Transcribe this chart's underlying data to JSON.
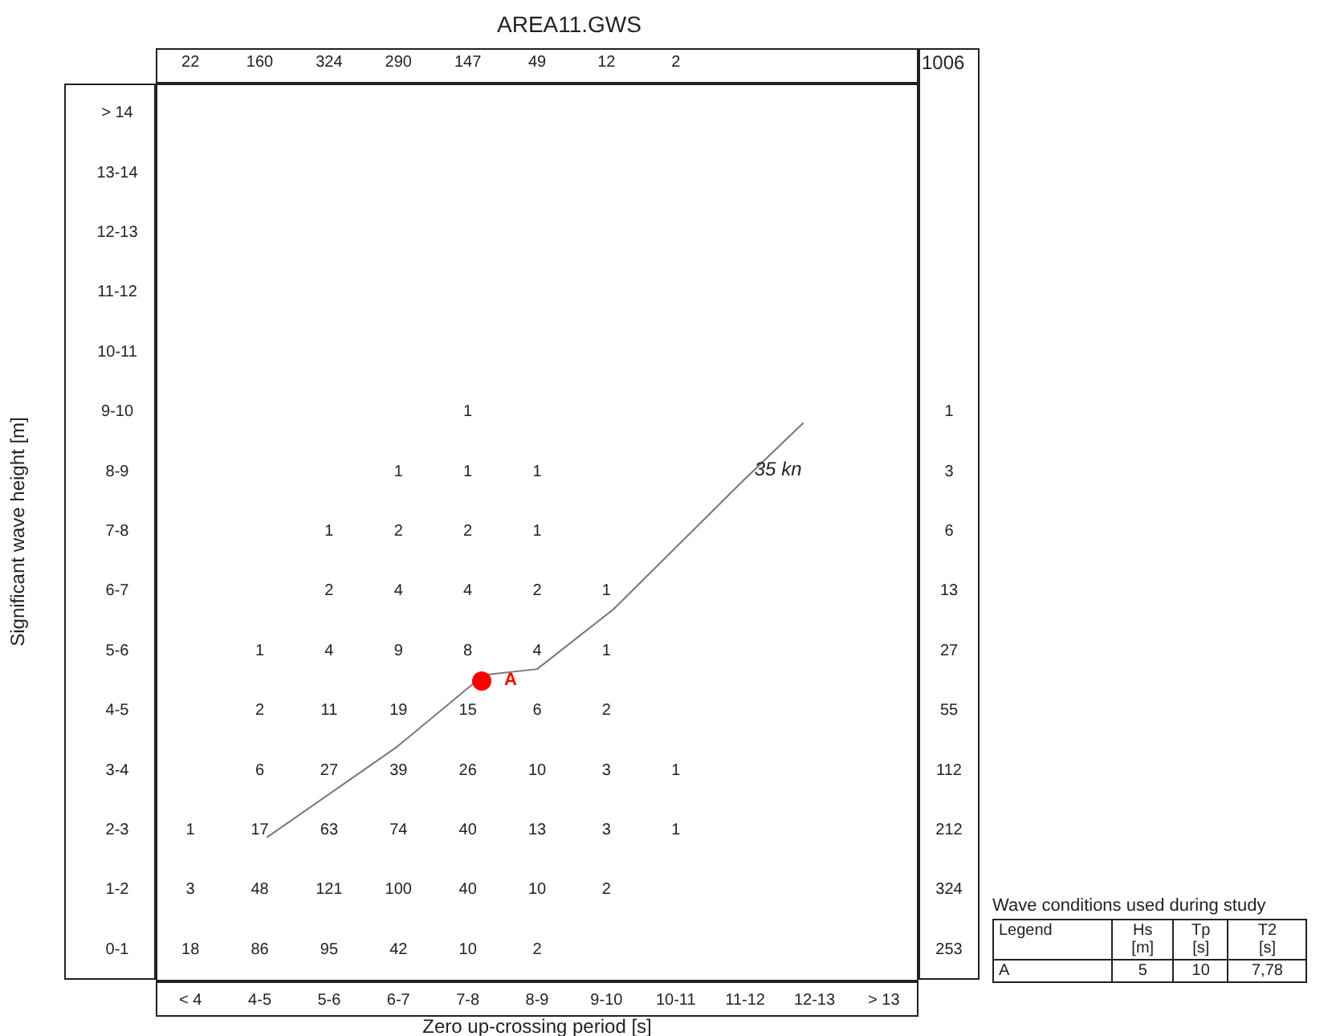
{
  "chart_data": [
    {
      "type": "heatmap",
      "title": "AREA11.GWS",
      "xlabel": "Zero up-crossing period [s]",
      "ylabel": "Significant wave height [m]",
      "categories": [
        "< 4",
        "4-5",
        "5-6",
        "6-7",
        "7-8",
        "8-9",
        "9-10",
        "10-11",
        "11-12",
        "12-13",
        "> 13"
      ],
      "y_categories": [
        "> 14",
        "13-14",
        "12-13",
        "11-12",
        "10-11",
        "9-10",
        "8-9",
        "7-8",
        "6-7",
        "5-6",
        "4-5",
        "3-4",
        "2-3",
        "1-2",
        "0-1"
      ],
      "y2_categories": [
        null,
        null,
        null,
        null,
        null,
        "1",
        "3",
        "6",
        "13",
        "27",
        "55",
        "112",
        "212",
        "324",
        "253"
      ],
      "totals": [
        "22",
        "160",
        "324",
        "290",
        "147",
        "49",
        "12",
        "2",
        null,
        null,
        null
      ],
      "cells": [
        [
          null,
          null,
          null,
          null,
          null,
          null,
          null,
          null,
          null,
          null,
          null
        ],
        [
          null,
          null,
          null,
          null,
          null,
          null,
          null,
          null,
          null,
          null,
          null
        ],
        [
          null,
          null,
          null,
          null,
          null,
          null,
          null,
          null,
          null,
          null,
          null
        ],
        [
          null,
          null,
          null,
          null,
          null,
          null,
          null,
          null,
          null,
          null,
          null
        ],
        [
          null,
          null,
          null,
          null,
          null,
          null,
          null,
          null,
          null,
          null,
          null
        ],
        [
          null,
          null,
          null,
          null,
          1,
          null,
          null,
          null,
          null,
          null,
          null
        ],
        [
          null,
          null,
          null,
          1,
          1,
          1,
          null,
          null,
          null,
          null,
          null
        ],
        [
          null,
          null,
          1,
          2,
          2,
          1,
          null,
          null,
          null,
          null,
          null
        ],
        [
          null,
          null,
          2,
          4,
          4,
          2,
          1,
          null,
          null,
          null,
          null
        ],
        [
          null,
          1,
          4,
          9,
          8,
          4,
          1,
          null,
          null,
          null,
          null
        ],
        [
          null,
          2,
          11,
          19,
          15,
          6,
          2,
          null,
          null,
          null,
          null
        ],
        [
          null,
          6,
          27,
          39,
          26,
          10,
          3,
          1,
          null,
          null,
          null
        ],
        [
          1,
          17,
          63,
          74,
          40,
          13,
          3,
          1,
          null,
          null,
          null
        ],
        [
          3,
          48,
          121,
          100,
          40,
          10,
          2,
          null,
          null,
          null,
          null
        ],
        [
          18,
          86,
          95,
          42,
          10,
          2,
          null,
          null,
          null,
          null,
          null
        ]
      ],
      "data_labels": true,
      "annotations": [
        "1006",
        "35 kn",
        "A"
      ]
    },
    {
      "type": "other",
      "title": "Wave conditions used during study",
      "annotations": [
        "Legend",
        "Hs\n[m]",
        "Tp\n[s]",
        "T2\n[s]",
        "A",
        "5",
        "10",
        "7,78"
      ]
    }
  ]
}
